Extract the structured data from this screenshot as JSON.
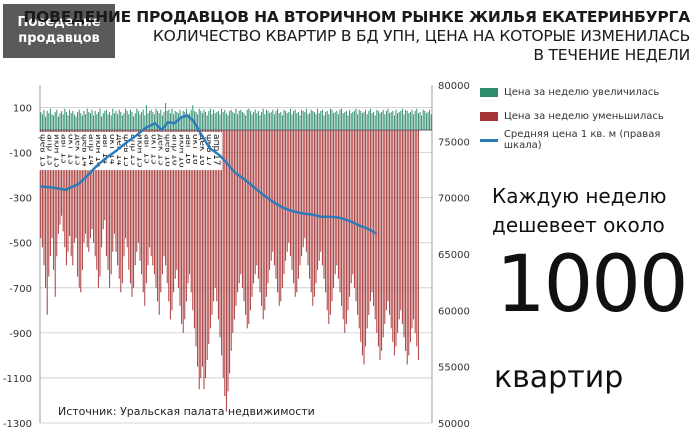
{
  "badge": "Поведение\nпродавцов",
  "title": {
    "line1": "ПОВЕДЕНИЕ ПРОДАВЦОВ НА ВТОРИЧНОМ РЫНКЕ ЖИЛЬЯ ЕКАТЕРИНБУРГА",
    "line2": "КОЛИЧЕСТВО КВАРТИР В БД УПН, ЦЕНА НА КОТОРЫЕ ИЗМЕНИЛАСЬ",
    "line3": "В ТЕЧЕНИЕ НЕДЕЛИ"
  },
  "legend": {
    "increase": "Цена за неделю увеличилась",
    "decrease": "Цена за неделю уменьшилась",
    "price": "Средняя цена 1 кв. м (правая шкала)"
  },
  "note": {
    "text": "Каждую неделю\nдешевеет около",
    "number": "1000",
    "unit": "квартир"
  },
  "source": "Источник: Уральская палата недвижимости",
  "colors": {
    "increase": "#2e8b6e",
    "decrease": "#a63434",
    "price": "#2b7bb9"
  },
  "chart_data": {
    "type": "bar",
    "x_labels": [
      "фев 13",
      "апр 13",
      "июн 13",
      "авг 13",
      "окт 13",
      "дек 13",
      "фев 14",
      "апр 14",
      "июн 14",
      "авг 14",
      "окт 14",
      "дек 14",
      "фев 15",
      "апр 15",
      "июн 15",
      "авг 15",
      "окт 15",
      "дек 15",
      "фев 16",
      "апр 16",
      "июн 16",
      "авг 16",
      "окт 16",
      "дек 16",
      "фев 17",
      "апр 17"
    ],
    "y_left_ticks": [
      100,
      -100,
      -300,
      -500,
      -700,
      -900,
      -1100,
      -1300
    ],
    "y_left_lim": [
      -1300,
      200
    ],
    "y_right_ticks": [
      80000,
      75000,
      70000,
      65000,
      60000,
      55000,
      50000
    ],
    "y_right_lim": [
      50000,
      80000
    ],
    "weeks_per_label": 4.33,
    "series": [
      {
        "name": "Цена за неделю увеличилась",
        "axis": "left",
        "values": [
          80,
          70,
          90,
          60,
          85,
          75,
          95,
          70,
          65,
          80,
          90,
          60,
          75,
          85,
          70,
          95,
          80,
          65,
          90,
          75,
          85,
          70,
          60,
          80,
          90,
          75,
          65,
          85,
          70,
          95,
          80,
          75,
          90,
          65,
          85,
          70,
          80,
          95,
          60,
          75,
          85,
          90,
          70,
          80,
          65,
          95,
          75,
          85,
          70,
          90,
          80,
          65,
          75,
          95,
          85,
          70,
          90,
          80,
          60,
          75,
          95,
          85,
          70,
          80,
          90,
          65,
          110,
          75,
          85,
          90,
          80,
          70,
          95,
          85,
          75,
          90,
          65,
          80,
          120,
          85,
          90,
          75,
          95,
          70,
          85,
          80,
          75,
          90,
          65,
          85,
          80,
          95,
          70,
          75,
          90,
          110,
          85,
          80,
          70,
          95,
          85,
          75,
          90,
          80,
          65,
          85,
          95,
          70,
          90,
          75,
          80,
          85,
          70,
          95,
          80,
          90,
          75,
          65,
          85,
          90,
          80,
          75,
          95,
          70,
          85,
          90,
          80,
          75,
          65,
          90,
          95,
          85,
          70,
          80,
          90,
          75,
          85,
          65,
          80,
          95,
          70,
          90,
          85,
          75,
          80,
          90,
          70,
          85,
          95,
          75,
          80,
          65,
          90,
          85,
          75,
          80,
          95,
          70,
          85,
          90,
          75,
          80,
          65,
          90,
          85,
          80,
          95,
          70,
          75,
          90,
          85,
          80,
          70,
          95,
          75,
          85,
          90,
          65,
          80,
          85,
          70,
          95,
          90,
          75,
          80,
          85,
          70,
          90,
          95,
          75,
          80,
          85,
          65,
          90,
          75,
          80,
          85,
          95,
          70,
          90,
          85,
          75,
          80,
          90,
          70,
          85,
          95,
          75,
          80,
          65,
          90,
          85,
          75,
          80,
          90,
          70,
          85,
          95,
          75,
          80,
          85,
          65,
          90,
          75,
          80,
          85,
          95,
          70,
          90,
          85,
          75,
          80,
          90,
          70,
          85,
          95,
          75,
          80,
          65,
          90,
          85,
          75,
          80,
          90,
          70
        ]
      },
      {
        "name": "Цена за неделю уменьшилась",
        "axis": "left",
        "values": [
          -480,
          -520,
          -600,
          -700,
          -820,
          -650,
          -560,
          -480,
          -620,
          -740,
          -560,
          -460,
          -420,
          -380,
          -450,
          -520,
          -600,
          -540,
          -470,
          -560,
          -600,
          -500,
          -480,
          -650,
          -700,
          -720,
          -620,
          -500,
          -460,
          -520,
          -540,
          -480,
          -440,
          -500,
          -560,
          -620,
          -700,
          -650,
          -520,
          -440,
          -400,
          -560,
          -620,
          -700,
          -640,
          -540,
          -460,
          -540,
          -600,
          -660,
          -720,
          -680,
          -560,
          -480,
          -520,
          -620,
          -680,
          -740,
          -700,
          -600,
          -540,
          -500,
          -580,
          -640,
          -720,
          -780,
          -680,
          -600,
          -520,
          -560,
          -600,
          -640,
          -700,
          -760,
          -820,
          -720,
          -640,
          -560,
          -600,
          -680,
          -760,
          -840,
          -800,
          -720,
          -660,
          -620,
          -700,
          -780,
          -860,
          -900,
          -840,
          -760,
          -680,
          -640,
          -720,
          -800,
          -880,
          -960,
          -1050,
          -1150,
          -1100,
          -1050,
          -1150,
          -1100,
          -1020,
          -950,
          -880,
          -820,
          -760,
          -700,
          -760,
          -840,
          -920,
          -1000,
          -1100,
          -1180,
          -1250,
          -1160,
          -1080,
          -980,
          -900,
          -840,
          -780,
          -720,
          -680,
          -640,
          -700,
          -760,
          -820,
          -880,
          -860,
          -800,
          -740,
          -680,
          -640,
          -600,
          -660,
          -720,
          -780,
          -840,
          -800,
          -740,
          -680,
          -620,
          -580,
          -540,
          -600,
          -660,
          -720,
          -780,
          -760,
          -700,
          -640,
          -580,
          -540,
          -500,
          -560,
          -620,
          -680,
          -740,
          -720,
          -660,
          -600,
          -560,
          -520,
          -480,
          -540,
          -600,
          -660,
          -720,
          -780,
          -740,
          -680,
          -620,
          -580,
          -540,
          -600,
          -660,
          -720,
          -800,
          -860,
          -820,
          -760,
          -700,
          -640,
          -600,
          -660,
          -720,
          -780,
          -840,
          -900,
          -860,
          -800,
          -740,
          -680,
          -640,
          -700,
          -760,
          -820,
          -880,
          -940,
          -1000,
          -1040,
          -960,
          -880,
          -820,
          -760,
          -720,
          -780,
          -840,
          -900,
          -960,
          -1020,
          -980,
          -920,
          -860,
          -800,
          -760,
          -820,
          -880,
          -940,
          -1000,
          -960,
          -900,
          -840,
          -800,
          -860,
          -920,
          -980,
          -1040,
          -1000,
          -940,
          -880,
          -840,
          -900,
          -960,
          -1020
        ]
      },
      {
        "name": "Средняя цена 1 кв. м (правая шкала)",
        "axis": "right",
        "type": "line",
        "points": [
          [
            0,
            71000
          ],
          [
            8,
            70900
          ],
          [
            16,
            70700
          ],
          [
            24,
            71200
          ],
          [
            30,
            72000
          ],
          [
            36,
            72900
          ],
          [
            42,
            73600
          ],
          [
            48,
            74200
          ],
          [
            54,
            74900
          ],
          [
            60,
            75500
          ],
          [
            66,
            76200
          ],
          [
            72,
            76600
          ],
          [
            76,
            76000
          ],
          [
            80,
            76700
          ],
          [
            84,
            76600
          ],
          [
            88,
            77100
          ],
          [
            92,
            77300
          ],
          [
            96,
            76800
          ],
          [
            100,
            75800
          ],
          [
            106,
            74400
          ],
          [
            112,
            73800
          ],
          [
            116,
            73200
          ],
          [
            122,
            72200
          ],
          [
            128,
            71600
          ],
          [
            134,
            70900
          ],
          [
            140,
            70200
          ],
          [
            146,
            69600
          ],
          [
            152,
            69100
          ],
          [
            158,
            68800
          ],
          [
            164,
            68600
          ],
          [
            170,
            68500
          ],
          [
            176,
            68300
          ],
          [
            182,
            68300
          ],
          [
            188,
            68200
          ],
          [
            194,
            67900
          ],
          [
            200,
            67500
          ],
          [
            204,
            67300
          ],
          [
            208,
            67000
          ],
          [
            210,
            66800
          ]
        ]
      }
    ]
  }
}
